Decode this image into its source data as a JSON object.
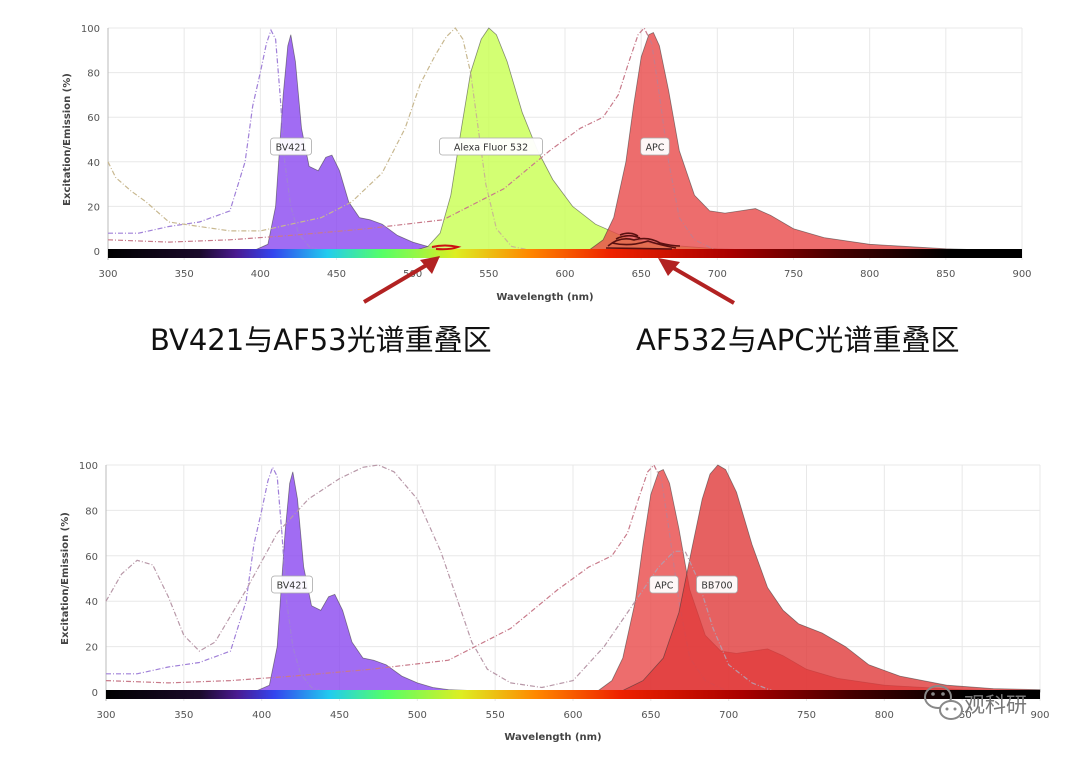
{
  "chart_data": [
    {
      "type": "area",
      "xlabel": "Wavelength (nm)",
      "ylabel": "Excitation/Emission (%)",
      "xlim": [
        300,
        900
      ],
      "ylim": [
        0,
        100
      ],
      "x_ticks": [
        300,
        350,
        400,
        450,
        500,
        550,
        600,
        650,
        700,
        750,
        800,
        850,
        900
      ],
      "y_ticks": [
        0,
        20,
        40,
        60,
        80,
        100
      ],
      "series": [
        {
          "name": "BV421",
          "kind": "emission",
          "color": "#8a47f0",
          "points": [
            [
              395,
              0
            ],
            [
              405,
              3
            ],
            [
              410,
              20
            ],
            [
              415,
              70
            ],
            [
              418,
              92
            ],
            [
              420,
              97
            ],
            [
              423,
              85
            ],
            [
              427,
              55
            ],
            [
              432,
              38
            ],
            [
              438,
              36
            ],
            [
              443,
              42
            ],
            [
              447,
              43
            ],
            [
              452,
              36
            ],
            [
              458,
              22
            ],
            [
              465,
              15
            ],
            [
              472,
              14
            ],
            [
              480,
              12
            ],
            [
              490,
              7
            ],
            [
              500,
              4
            ],
            [
              510,
              2
            ],
            [
              520,
              1
            ],
            [
              540,
              0.5
            ],
            [
              560,
              0
            ]
          ]
        },
        {
          "name": "",
          "kind": "excitation",
          "color": "#a080d8",
          "points": [
            [
              300,
              8
            ],
            [
              320,
              8
            ],
            [
              340,
              11
            ],
            [
              360,
              13
            ],
            [
              380,
              18
            ],
            [
              390,
              40
            ],
            [
              395,
              65
            ],
            [
              400,
              80
            ],
            [
              404,
              93
            ],
            [
              407,
              99
            ],
            [
              410,
              95
            ],
            [
              413,
              70
            ],
            [
              416,
              40
            ],
            [
              420,
              20
            ],
            [
              425,
              8
            ],
            [
              432,
              2
            ],
            [
              440,
              0
            ]
          ]
        },
        {
          "name": "Alexa Fluor 532",
          "kind": "emission",
          "color": "#c8ff50",
          "points": [
            [
              500,
              0
            ],
            [
              510,
              2
            ],
            [
              518,
              8
            ],
            [
              525,
              25
            ],
            [
              532,
              55
            ],
            [
              538,
              80
            ],
            [
              545,
              95
            ],
            [
              550,
              100
            ],
            [
              555,
              97
            ],
            [
              562,
              85
            ],
            [
              572,
              62
            ],
            [
              582,
              45
            ],
            [
              592,
              32
            ],
            [
              605,
              20
            ],
            [
              620,
              12
            ],
            [
              640,
              6
            ],
            [
              660,
              3
            ],
            [
              700,
              1
            ],
            [
              740,
              0
            ]
          ]
        },
        {
          "name": "",
          "kind": "excitation",
          "color": "#c8b890",
          "points": [
            [
              300,
              40
            ],
            [
              305,
              33
            ],
            [
              315,
              27
            ],
            [
              325,
              22
            ],
            [
              340,
              13
            ],
            [
              360,
              11
            ],
            [
              380,
              9
            ],
            [
              400,
              9
            ],
            [
              420,
              12
            ],
            [
              440,
              15
            ],
            [
              460,
              22
            ],
            [
              480,
              35
            ],
            [
              495,
              55
            ],
            [
              505,
              75
            ],
            [
              515,
              88
            ],
            [
              522,
              96
            ],
            [
              528,
              100
            ],
            [
              533,
              95
            ],
            [
              538,
              80
            ],
            [
              543,
              55
            ],
            [
              548,
              30
            ],
            [
              555,
              10
            ],
            [
              565,
              2
            ],
            [
              580,
              0
            ]
          ]
        },
        {
          "name": "APC",
          "kind": "emission",
          "color": "#e84848",
          "points": [
            [
              615,
              0
            ],
            [
              625,
              5
            ],
            [
              632,
              15
            ],
            [
              640,
              40
            ],
            [
              645,
              65
            ],
            [
              650,
              87
            ],
            [
              655,
              97
            ],
            [
              658,
              98
            ],
            [
              662,
              92
            ],
            [
              668,
              72
            ],
            [
              675,
              45
            ],
            [
              685,
              25
            ],
            [
              695,
              18
            ],
            [
              705,
              17
            ],
            [
              715,
              18
            ],
            [
              725,
              19
            ],
            [
              735,
              16
            ],
            [
              750,
              10
            ],
            [
              770,
              6
            ],
            [
              800,
              3
            ],
            [
              850,
              1
            ],
            [
              900,
              0
            ]
          ]
        },
        {
          "name": "",
          "kind": "excitation",
          "color": "#c87a8a",
          "points": [
            [
              300,
              5
            ],
            [
              340,
              4
            ],
            [
              380,
              5
            ],
            [
              420,
              7
            ],
            [
              470,
              10
            ],
            [
              520,
              14
            ],
            [
              560,
              28
            ],
            [
              590,
              45
            ],
            [
              610,
              55
            ],
            [
              625,
              60
            ],
            [
              635,
              70
            ],
            [
              642,
              85
            ],
            [
              648,
              97
            ],
            [
              652,
              100
            ],
            [
              657,
              93
            ],
            [
              662,
              70
            ],
            [
              668,
              40
            ],
            [
              675,
              15
            ],
            [
              685,
              5
            ],
            [
              700,
              0
            ]
          ]
        }
      ]
    },
    {
      "type": "area",
      "xlabel": "Wavelength (nm)",
      "ylabel": "Excitation/Emission (%)",
      "xlim": [
        300,
        900
      ],
      "ylim": [
        0,
        100
      ],
      "x_ticks": [
        300,
        350,
        400,
        450,
        500,
        550,
        600,
        650,
        700,
        750,
        800,
        850,
        900
      ],
      "y_ticks": [
        0,
        20,
        40,
        60,
        80,
        100
      ],
      "series": [
        {
          "name": "BV421",
          "kind": "emission",
          "color": "#8a47f0",
          "points": [
            [
              395,
              0
            ],
            [
              405,
              3
            ],
            [
              410,
              20
            ],
            [
              415,
              70
            ],
            [
              418,
              92
            ],
            [
              420,
              97
            ],
            [
              423,
              85
            ],
            [
              427,
              55
            ],
            [
              432,
              38
            ],
            [
              438,
              36
            ],
            [
              443,
              42
            ],
            [
              447,
              43
            ],
            [
              452,
              36
            ],
            [
              458,
              22
            ],
            [
              465,
              15
            ],
            [
              472,
              14
            ],
            [
              480,
              12
            ],
            [
              490,
              7
            ],
            [
              500,
              4
            ],
            [
              510,
              2
            ],
            [
              520,
              1
            ],
            [
              540,
              0.5
            ],
            [
              560,
              0
            ]
          ]
        },
        {
          "name": "",
          "kind": "excitation",
          "color": "#a080d8",
          "points": [
            [
              300,
              8
            ],
            [
              320,
              8
            ],
            [
              340,
              11
            ],
            [
              360,
              13
            ],
            [
              380,
              18
            ],
            [
              390,
              40
            ],
            [
              395,
              65
            ],
            [
              400,
              80
            ],
            [
              404,
              93
            ],
            [
              407,
              99
            ],
            [
              410,
              95
            ],
            [
              413,
              70
            ],
            [
              416,
              40
            ],
            [
              420,
              20
            ],
            [
              425,
              8
            ],
            [
              432,
              2
            ],
            [
              440,
              0
            ]
          ]
        },
        {
          "name": "APC",
          "kind": "emission",
          "color": "#e84848",
          "points": [
            [
              615,
              0
            ],
            [
              625,
              5
            ],
            [
              632,
              15
            ],
            [
              640,
              40
            ],
            [
              645,
              65
            ],
            [
              650,
              87
            ],
            [
              655,
              97
            ],
            [
              658,
              98
            ],
            [
              662,
              92
            ],
            [
              668,
              72
            ],
            [
              675,
              45
            ],
            [
              685,
              25
            ],
            [
              695,
              18
            ],
            [
              705,
              17
            ],
            [
              715,
              18
            ],
            [
              725,
              19
            ],
            [
              735,
              16
            ],
            [
              750,
              10
            ],
            [
              770,
              6
            ],
            [
              800,
              3
            ],
            [
              850,
              1
            ],
            [
              900,
              0
            ]
          ]
        },
        {
          "name": "",
          "kind": "excitation",
          "color": "#c87a8a",
          "points": [
            [
              300,
              5
            ],
            [
              340,
              4
            ],
            [
              380,
              5
            ],
            [
              420,
              7
            ],
            [
              470,
              10
            ],
            [
              520,
              14
            ],
            [
              560,
              28
            ],
            [
              590,
              45
            ],
            [
              610,
              55
            ],
            [
              625,
              60
            ],
            [
              635,
              70
            ],
            [
              642,
              85
            ],
            [
              648,
              97
            ],
            [
              652,
              100
            ],
            [
              657,
              93
            ],
            [
              662,
              70
            ],
            [
              668,
              40
            ],
            [
              675,
              15
            ],
            [
              685,
              5
            ],
            [
              700,
              0
            ]
          ]
        },
        {
          "name": "BB700",
          "kind": "emission",
          "color": "#e03a3a",
          "points": [
            [
              630,
              0
            ],
            [
              645,
              5
            ],
            [
              658,
              15
            ],
            [
              668,
              35
            ],
            [
              676,
              62
            ],
            [
              683,
              85
            ],
            [
              688,
              96
            ],
            [
              693,
              100
            ],
            [
              698,
              98
            ],
            [
              705,
              88
            ],
            [
              715,
              65
            ],
            [
              725,
              46
            ],
            [
              735,
              36
            ],
            [
              745,
              30
            ],
            [
              760,
              26
            ],
            [
              775,
              20
            ],
            [
              790,
              12
            ],
            [
              810,
              7
            ],
            [
              840,
              3
            ],
            [
              870,
              1.5
            ],
            [
              900,
              1
            ]
          ]
        },
        {
          "name": "",
          "kind": "excitation",
          "color": "#b898a8",
          "points": [
            [
              300,
              40
            ],
            [
              310,
              52
            ],
            [
              320,
              58
            ],
            [
              330,
              56
            ],
            [
              340,
              42
            ],
            [
              350,
              25
            ],
            [
              360,
              18
            ],
            [
              370,
              22
            ],
            [
              390,
              45
            ],
            [
              410,
              70
            ],
            [
              430,
              85
            ],
            [
              450,
              94
            ],
            [
              465,
              99
            ],
            [
              475,
              100
            ],
            [
              485,
              97
            ],
            [
              500,
              85
            ],
            [
              515,
              62
            ],
            [
              525,
              42
            ],
            [
              535,
              22
            ],
            [
              545,
              10
            ],
            [
              560,
              4
            ],
            [
              580,
              2
            ],
            [
              600,
              5
            ],
            [
              620,
              20
            ],
            [
              640,
              40
            ],
            [
              655,
              55
            ],
            [
              665,
              62
            ],
            [
              672,
              62
            ],
            [
              680,
              50
            ],
            [
              690,
              28
            ],
            [
              700,
              12
            ],
            [
              715,
              4
            ],
            [
              730,
              0
            ]
          ]
        }
      ]
    }
  ],
  "annotations": {
    "overlap1": "BV421与AF53光谱重叠区",
    "overlap2": "AF532与APC光谱重叠区"
  },
  "watermark": {
    "text": "观科研",
    "icon": "wechat-icon"
  },
  "colors": {
    "arrow": "#b22222",
    "grid": "#e8e8e8"
  }
}
